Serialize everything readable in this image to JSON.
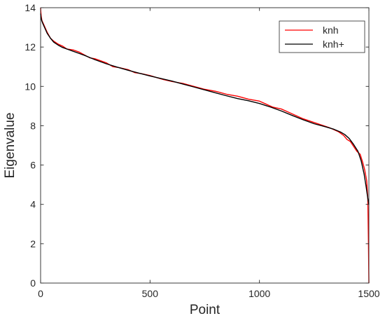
{
  "chart_data": {
    "type": "line",
    "xlabel": "Point",
    "ylabel": "Eigenvalue",
    "xlim": [
      0,
      1500
    ],
    "ylim": [
      0,
      14
    ],
    "xticks": [
      0,
      500,
      1000,
      1500
    ],
    "yticks": [
      0,
      2,
      4,
      6,
      8,
      10,
      12,
      14
    ],
    "grid": false,
    "legend_position": "top-right",
    "series": [
      {
        "name": "knh",
        "color": "#ff0000",
        "x": [
          0,
          1,
          3,
          6,
          12,
          20,
          30,
          45,
          60,
          80,
          100,
          120,
          150,
          175,
          200,
          225,
          250,
          275,
          300,
          330,
          360,
          400,
          430,
          460,
          500,
          530,
          560,
          600,
          650,
          700,
          750,
          800,
          850,
          900,
          950,
          1000,
          1030,
          1060,
          1100,
          1130,
          1160,
          1200,
          1240,
          1280,
          1320,
          1360,
          1385,
          1400,
          1415,
          1430,
          1445,
          1460,
          1470,
          1480,
          1490,
          1495,
          1498,
          1500
        ],
        "y": [
          14.0,
          13.8,
          13.55,
          13.35,
          13.2,
          13.0,
          12.75,
          12.45,
          12.3,
          12.15,
          12.05,
          11.9,
          11.85,
          11.75,
          11.6,
          11.45,
          11.4,
          11.3,
          11.2,
          11.0,
          10.95,
          10.85,
          10.7,
          10.65,
          10.55,
          10.45,
          10.35,
          10.25,
          10.15,
          10.0,
          9.85,
          9.75,
          9.6,
          9.5,
          9.35,
          9.25,
          9.1,
          8.95,
          8.85,
          8.7,
          8.55,
          8.35,
          8.2,
          8.05,
          7.9,
          7.7,
          7.5,
          7.3,
          7.2,
          6.95,
          6.7,
          6.55,
          6.2,
          5.8,
          5.2,
          4.3,
          2.0,
          0.0
        ]
      },
      {
        "name": "knh+",
        "color": "#000000",
        "x": [
          0,
          2,
          5,
          10,
          20,
          30,
          45,
          60,
          80,
          100,
          125,
          150,
          175,
          200,
          250,
          300,
          350,
          400,
          450,
          500,
          550,
          600,
          650,
          700,
          750,
          800,
          850,
          900,
          950,
          1000,
          1050,
          1100,
          1150,
          1200,
          1250,
          1300,
          1340,
          1370,
          1390,
          1410,
          1430,
          1450,
          1465,
          1478,
          1488,
          1495,
          1500
        ],
        "y": [
          13.7,
          13.5,
          13.35,
          13.2,
          12.95,
          12.7,
          12.45,
          12.25,
          12.1,
          11.98,
          11.88,
          11.78,
          11.68,
          11.58,
          11.35,
          11.15,
          10.98,
          10.82,
          10.67,
          10.53,
          10.4,
          10.27,
          10.12,
          9.97,
          9.82,
          9.67,
          9.52,
          9.38,
          9.27,
          9.13,
          8.95,
          8.75,
          8.52,
          8.3,
          8.1,
          7.95,
          7.82,
          7.68,
          7.55,
          7.35,
          7.05,
          6.7,
          6.2,
          5.55,
          4.85,
          4.3,
          4.0
        ]
      }
    ]
  }
}
